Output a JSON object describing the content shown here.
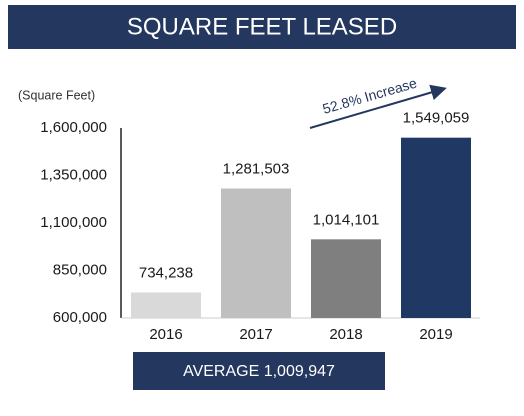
{
  "chart_data": {
    "type": "bar",
    "title": "SQUARE FEET LEASED",
    "y_label": "(Square Feet)",
    "annotation": "52.8% Increase",
    "footer": "AVERAGE 1,009,947",
    "categories": [
      "2016",
      "2017",
      "2018",
      "2019"
    ],
    "values": [
      734238,
      1281503,
      1014101,
      1549059
    ],
    "value_labels": [
      "734,238",
      "1,281,503",
      "1,014,101",
      "1,549,059"
    ],
    "colors": [
      "#d9d9d9",
      "#bfbfbf",
      "#7f7f7f",
      "#1f3864"
    ],
    "ylim": [
      600000,
      1600000
    ],
    "yticks": [
      {
        "value": 600000,
        "label": "600,000"
      },
      {
        "value": 850000,
        "label": "850,000"
      },
      {
        "value": 1100000,
        "label": "1,100,000"
      },
      {
        "value": 1350000,
        "label": "1,350,000"
      },
      {
        "value": 1600000,
        "label": "1,600,000"
      }
    ],
    "grid": false
  }
}
